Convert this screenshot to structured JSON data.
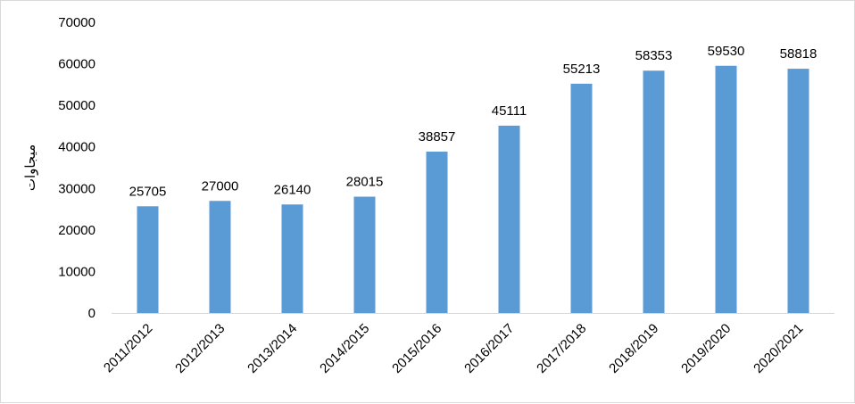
{
  "chart_data": {
    "type": "bar",
    "title": "",
    "xlabel": "",
    "ylabel": "ميجاوات",
    "categories": [
      "2011/2012",
      "2012/2013",
      "2013/2014",
      "2014/2015",
      "2015/2016",
      "2016/2017",
      "2017/2018",
      "2018/2019",
      "2019/2020",
      "2020/2021"
    ],
    "values": [
      25705,
      27000,
      26140,
      28015,
      38857,
      45111,
      55213,
      58353,
      59530,
      58818
    ],
    "ylim": [
      0,
      70000
    ],
    "yticks": [
      "0",
      "10000",
      "20000",
      "30000",
      "40000",
      "50000",
      "60000",
      "70000"
    ],
    "grid": false,
    "legend": "none",
    "bar_color": "#5b9bd5",
    "axis_color": "#d9d9d9"
  }
}
